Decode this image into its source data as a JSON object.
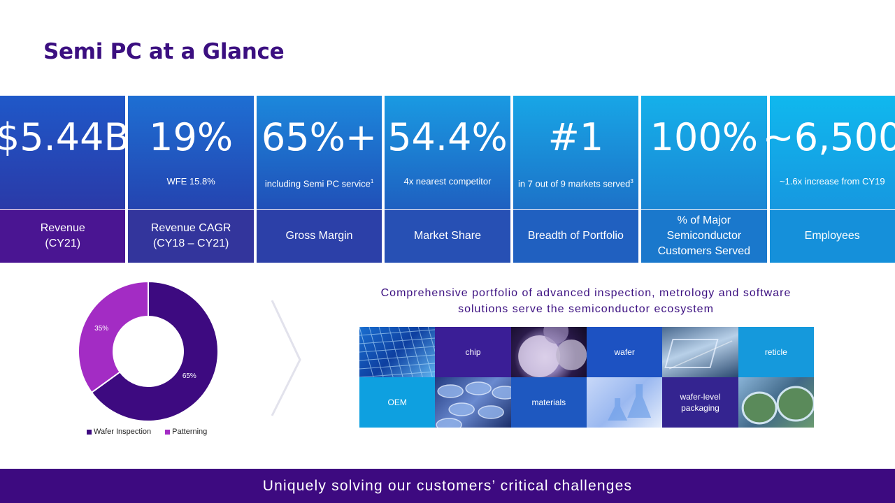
{
  "title": "Semi PC at a Glance",
  "kpis": [
    {
      "value": "$5.44B",
      "sub": "",
      "label": "Revenue\n(CY21)",
      "top_color": "#1f58c8",
      "top_color2": "#2a3aa8",
      "bottom_color": "#4a1592"
    },
    {
      "value": "19%",
      "sub": "WFE 15.8%",
      "label": "Revenue CAGR\n(CY18 – CY21)",
      "top_color": "#1e6fd3",
      "top_color2": "#2444b0",
      "bottom_color": "#33359c"
    },
    {
      "value": "65%+",
      "sub": "including Semi PC service",
      "sup": "1",
      "label": "Gross Margin",
      "top_color": "#1c88dc",
      "top_color2": "#2050b8",
      "bottom_color": "#2c40a8"
    },
    {
      "value": "54.4%",
      "sub": "4x nearest competitor",
      "label": "Market Share",
      "top_color": "#1a9ae2",
      "top_color2": "#1e60c0",
      "bottom_color": "#2750b4"
    },
    {
      "value": "#1",
      "sub": "in 7 out of 9 markets served",
      "sup": "3",
      "label": "Breadth of Portfolio",
      "top_color": "#18a6e6",
      "top_color2": "#1c72c8",
      "bottom_color": "#2060c0"
    },
    {
      "value": "100%",
      "sub": "",
      "label": "% of Major\nSemiconductor\nCustomers Served",
      "top_color": "#15b0ea",
      "top_color2": "#1a86d4",
      "bottom_color": "#1a78cc"
    },
    {
      "value": "~6,500",
      "sub": "~1.6x increase from CY19",
      "label": "Employees",
      "top_color": "#10b8ee",
      "top_color2": "#1698e0",
      "bottom_color": "#1590da"
    }
  ],
  "chart_data": {
    "type": "pie",
    "categories": [
      "Wafer Inspection",
      "Patterning"
    ],
    "values": [
      65,
      35
    ],
    "value_labels": [
      "65%",
      "35%"
    ],
    "colors": [
      "#3d0a80",
      "#a32cc4"
    ]
  },
  "portfolio": {
    "text": "Comprehensive portfolio of advanced inspection, metrology and software solutions serve the semiconductor ecosystem",
    "tiles": [
      {
        "label": "",
        "icon": "wafer-die-grid-image"
      },
      {
        "label": "chip"
      },
      {
        "label": "",
        "icon": "wafer-discs-image"
      },
      {
        "label": "wafer"
      },
      {
        "label": "",
        "icon": "reticle-stage-image"
      },
      {
        "label": "reticle"
      },
      {
        "label": "OEM"
      },
      {
        "label": "",
        "icon": "petri-dishes-image"
      },
      {
        "label": "materials"
      },
      {
        "label": "",
        "icon": "lab-flasks-image"
      },
      {
        "label": "wafer-level\npackaging"
      },
      {
        "label": "",
        "icon": "wafer-carriers-image"
      }
    ]
  },
  "footer": "Uniquely solving our customers’ critical challenges"
}
